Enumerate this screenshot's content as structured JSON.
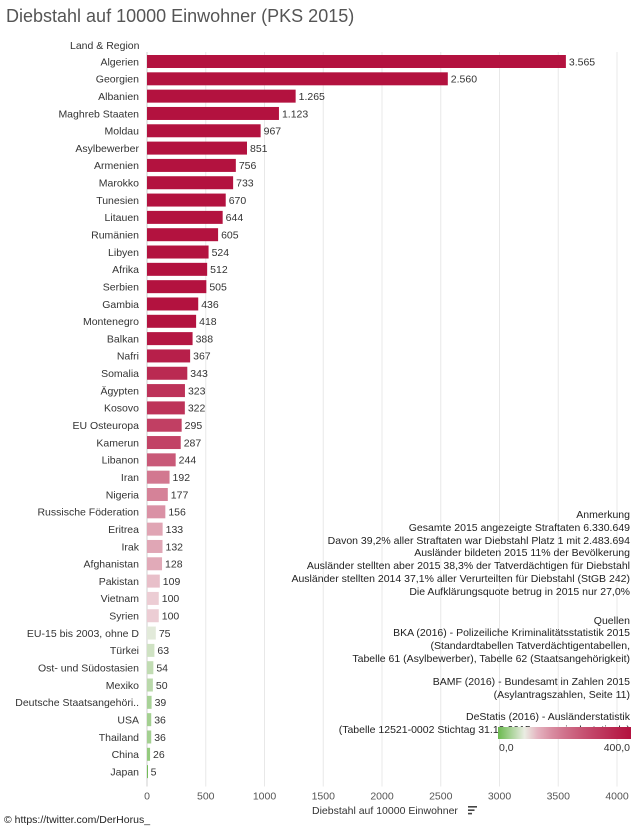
{
  "title": "Diebstahl auf 10000 Einwohner (PKS 2015)",
  "region_header": "Land & Region",
  "x_axis_label": "Diebstahl auf 10000 Einwohner",
  "sort_icon": "sort-descending-icon",
  "colors": {
    "low": "#6ab94e",
    "mid": "#f7f2f2",
    "high": "#b3123f",
    "text": "#333333",
    "grid": "#e8e8e8"
  },
  "chart_data": {
    "type": "bar",
    "orientation": "horizontal",
    "title": "Diebstahl auf 10000 Einwohner (PKS 2015)",
    "xlabel": "Diebstahl auf 10000 Einwohner",
    "ylabel": "Land & Region",
    "xlim": [
      0,
      4000
    ],
    "ticks": [
      "0",
      "500",
      "1000",
      "1500",
      "2000",
      "2500",
      "3000",
      "3500",
      "4000"
    ],
    "grid": true,
    "color_scale": {
      "min": 0,
      "max": 400,
      "min_label": "0,0",
      "max_label": "400,0"
    },
    "categories": [
      "Algerien",
      "Georgien",
      "Albanien",
      "Maghreb Staaten",
      "Moldau",
      "Asylbewerber",
      "Armenien",
      "Marokko",
      "Tunesien",
      "Litauen",
      "Rumänien",
      "Libyen",
      "Afrika",
      "Serbien",
      "Gambia",
      "Montenegro",
      "Balkan",
      "Nafri",
      "Somalia",
      "Ägypten",
      "Kosovo",
      "EU Osteuropa",
      "Kamerun",
      "Libanon",
      "Iran",
      "Nigeria",
      "Russische Föderation",
      "Eritrea",
      "Irak",
      "Afghanistan",
      "Pakistan",
      "Vietnam",
      "Syrien",
      "EU-15 bis 2003, ohne D",
      "Türkei",
      "Ost- und Südostasien",
      "Mexiko",
      "Deutsche Staatsangehöri..",
      "USA",
      "Thailand",
      "China",
      "Japan"
    ],
    "values": [
      3565,
      2560,
      1265,
      1123,
      967,
      851,
      756,
      733,
      670,
      644,
      605,
      524,
      512,
      505,
      436,
      418,
      388,
      367,
      343,
      323,
      322,
      295,
      287,
      244,
      192,
      177,
      156,
      133,
      132,
      128,
      109,
      100,
      100,
      75,
      63,
      54,
      50,
      39,
      36,
      36,
      26,
      5
    ],
    "value_labels": [
      "3.565",
      "2.560",
      "1.265",
      "1.123",
      "967",
      "851",
      "756",
      "733",
      "670",
      "644",
      "605",
      "524",
      "512",
      "505",
      "436",
      "418",
      "388",
      "367",
      "343",
      "323",
      "322",
      "295",
      "287",
      "244",
      "192",
      "177",
      "156",
      "133",
      "132",
      "128",
      "109",
      "100",
      "100",
      "75",
      "63",
      "54",
      "50",
      "39",
      "36",
      "36",
      "26",
      "5"
    ]
  },
  "notes": {
    "heading": "Anmerkung",
    "lines": [
      "Gesamte 2015 angezeigte Straftaten 6.330.649",
      "Davon 39,2% aller Straftaten war Diebstahl Platz 1 mit  2.483.694",
      "Ausländer bildeten 2015 11% der Bevölkerung",
      "Ausländer stellten aber 2015 38,3% der Tatverdächtigen für Diebstahl",
      "Ausländer stellten 2014 37,1% aller Verurteilten für Diebstahl (StGB 242)",
      "Die Aufklärungsquote betrug in 2015 nur 27,0%"
    ]
  },
  "sources": {
    "heading": "Quellen",
    "bka": [
      "BKA (2016) - Polizeiliche Kriminalitätsstatistik 2015",
      "(Standardtabellen Tatverdächtigentabellen,",
      "Tabelle 61 (Asylbewerber), Tabelle 62 (Staatsangehörigkeit)"
    ],
    "bamf": [
      "BAMF (2016) - Bundesamt in Zahlen 2015",
      "(Asylantragszahlen, Seite 11)"
    ],
    "destatis": [
      "DeStatis (2016) -  Ausländerstatistik",
      "(Tabelle 12521-0002 Stichtag 31.12.2015, genesis.destatis.de)"
    ]
  },
  "footer": "© https://twitter.com/DerHorus_"
}
